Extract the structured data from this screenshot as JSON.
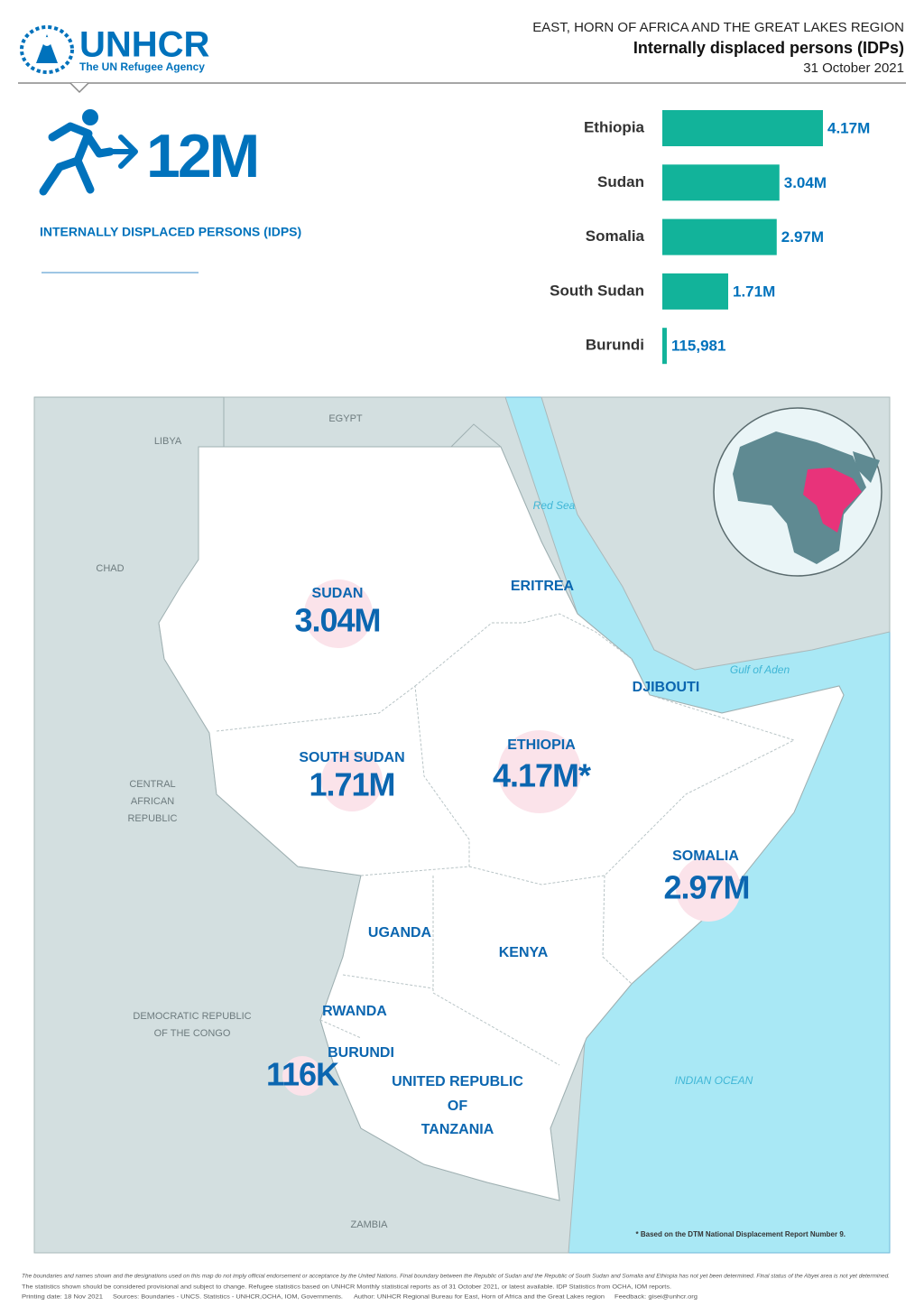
{
  "header": {
    "org": "UNHCR",
    "org_subtitle": "The UN Refugee Agency",
    "region": "EAST, HORN OF AFRICA AND THE GREAT LAKES REGION",
    "title": "Internally displaced persons (IDPs)",
    "date": "31 October 2021"
  },
  "kpi": {
    "value": "12M",
    "label": "INTERNALLY DISPLACED PERSONS (IDPS)"
  },
  "chart_data": {
    "type": "bar",
    "orientation": "horizontal",
    "color": "#12b39a",
    "categories": [
      "Ethiopia",
      "Sudan",
      "Somalia",
      "South Sudan",
      "Burundi"
    ],
    "values": [
      4170000,
      3040000,
      2970000,
      1710000,
      115981
    ],
    "value_labels": [
      "4.17M",
      "3.04M",
      "2.97M",
      "1.71M",
      "115,981"
    ]
  },
  "map": {
    "neighbors": {
      "egypt": "EGYPT",
      "libya": "LIBYA",
      "chad": "CHAD",
      "car": [
        "CENTRAL",
        "AFRICAN",
        "REPUBLIC"
      ],
      "drc": [
        "DEMOCRATIC REPUBLIC",
        "OF THE CONGO"
      ],
      "zambia": "ZAMBIA"
    },
    "seas": {
      "red_sea": "Red Sea",
      "gulf_of_aden": "Gulf of Aden",
      "indian_ocean": "INDIAN OCEAN"
    },
    "countries": {
      "sudan": "SUDAN",
      "eritrea": "ERITREA",
      "djibouti": "DJIBOUTI",
      "south_sudan": "SOUTH SUDAN",
      "ethiopia": "ETHIOPIA",
      "somalia": "SOMALIA",
      "uganda": "UGANDA",
      "kenya": "KENYA",
      "rwanda": "RWANDA",
      "burundi": "BURUNDI",
      "tanzania": [
        "UNITED REPUBLIC",
        "OF",
        "TANZANIA"
      ]
    },
    "figures": {
      "sudan": "3.04M",
      "south_sudan": "1.71M",
      "ethiopia": "4.17M*",
      "somalia": "2.97M",
      "burundi": "116K"
    },
    "footnote": "* Based on the DTM National Displacement Report Number 9."
  },
  "footer": {
    "disclaimer": "The boundaries and names shown and the designations used on this map do not imply official endorsement or acceptance by the United Nations. Final boundary between the Republic of Sudan and the Republic of South Sudan and Somalia and Ethiopia has not yet been determined. Final status of the Abyei area is not yet determined.",
    "statistics": "The statistics shown should be considered provisional and subject to change. Refugee statistics based on UNHCR Monthly statistical reports as of 31 October 2021, or latest available. IDP Statistics from OCHA, IOM reports.",
    "printing_date": "Printing date: 18 Nov 2021",
    "sources": "Sources: Boundaries - UNCS. Statistics - UNHCR,OCHA, IOM, Governments.",
    "author": "Author: UNHCR Regional Bureau for East, Horn of Africa and the Great Lakes region",
    "feedback": "Feedback: gisei@unhcr.org"
  }
}
